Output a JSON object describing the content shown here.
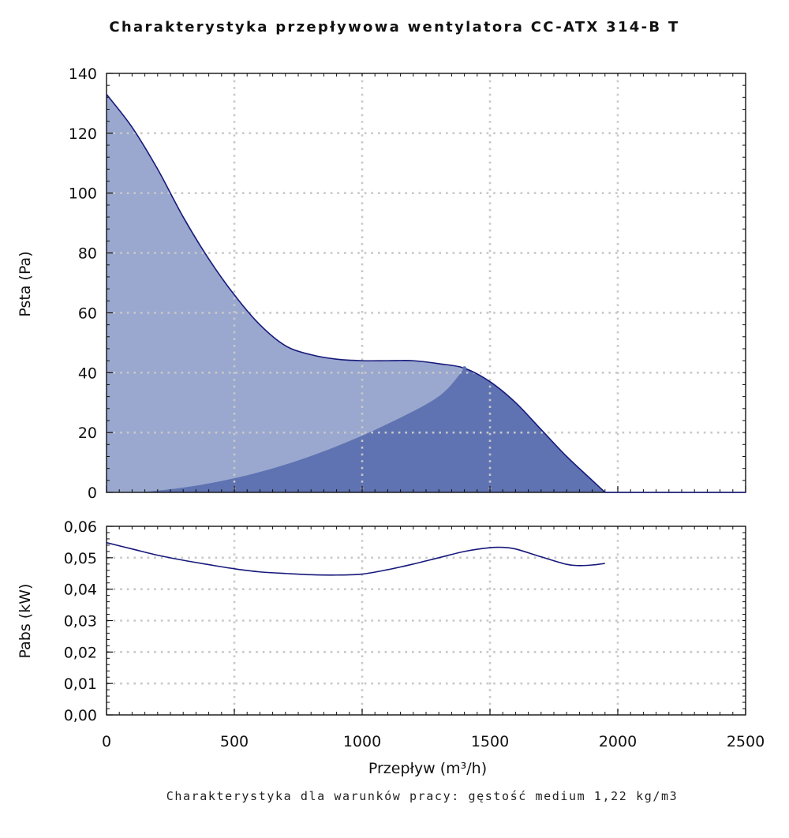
{
  "title": "Charakterystyka przepływowa wentylatora CC-ATX 314-B T",
  "footnote": "Charakterystyka dla warunków pracy: gęstość medium 1,22 kg/m3",
  "colors": {
    "pressure_area": "#9aa8cf",
    "operating_area": "#5f73b2",
    "curve": "#16197a",
    "grid": "#c8c8c8",
    "axis": "#111111"
  },
  "chart_data": [
    {
      "type": "area",
      "xlabel": "Przepływ (m³/h)",
      "ylabel": "Psta (Pa)",
      "xlim": [
        0,
        2500
      ],
      "ylim": [
        0,
        140
      ],
      "grid": true,
      "x_ticks": [
        "0",
        "500",
        "1000",
        "1500",
        "2000",
        "2500"
      ],
      "y_ticks": [
        "0",
        "20",
        "40",
        "60",
        "80",
        "100",
        "120",
        "140"
      ],
      "series": [
        {
          "x": [
            0,
            100,
            200,
            300,
            400,
            500,
            600,
            700,
            800,
            900,
            1000,
            1100,
            1200,
            1300,
            1400,
            1500,
            1600,
            1700,
            1800,
            1900,
            1950,
            2500
          ],
          "values": [
            133,
            122,
            108,
            92,
            78,
            66,
            56,
            49,
            46,
            44.5,
            44,
            44,
            44,
            43,
            41.5,
            37,
            30,
            21,
            12,
            4,
            0,
            0
          ]
        },
        {
          "x": [
            130,
            300,
            500,
            700,
            900,
            1100,
            1300,
            1400
          ],
          "values": [
            0,
            1.6,
            4.7,
            9.3,
            15.4,
            22.9,
            32.1,
            41.5
          ]
        }
      ]
    },
    {
      "type": "line",
      "xlabel": "Przepływ (m³/h)",
      "ylabel": "Pabs (kW)",
      "xlim": [
        0,
        2500
      ],
      "ylim": [
        0,
        0.06
      ],
      "grid": true,
      "x_ticks": [
        "0",
        "500",
        "1000",
        "1500",
        "2000",
        "2500"
      ],
      "y_ticks": [
        "0,00",
        "0,01",
        "0,02",
        "0,03",
        "0,04",
        "0,05",
        "0,06"
      ],
      "series": [
        {
          "x": [
            0,
            100,
            200,
            300,
            400,
            500,
            600,
            700,
            800,
            900,
            1000,
            1100,
            1200,
            1300,
            1400,
            1500,
            1550,
            1600,
            1700,
            1800,
            1850,
            1900,
            1950
          ],
          "values": [
            0.0548,
            0.0528,
            0.0508,
            0.0492,
            0.0478,
            0.0465,
            0.0455,
            0.045,
            0.0446,
            0.0445,
            0.0448,
            0.0462,
            0.048,
            0.05,
            0.052,
            0.0532,
            0.0533,
            0.0528,
            0.0503,
            0.0479,
            0.0475,
            0.0477,
            0.0482
          ]
        }
      ]
    }
  ]
}
